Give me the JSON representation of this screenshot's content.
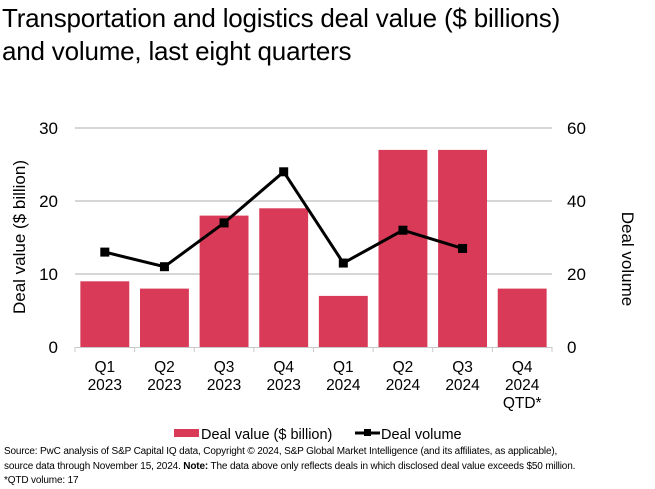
{
  "title_lines": [
    "Transportation and logistics deal value ($ billions)",
    "and volume, last eight quarters"
  ],
  "colors": {
    "bar": "#d93a58",
    "line": "#000000",
    "grid": "#c8c8c8"
  },
  "chart_data": {
    "type": "bar",
    "title": "Transportation and logistics deal value ($ billions) and volume, last eight quarters",
    "categories": [
      [
        "Q1",
        "2023"
      ],
      [
        "Q2",
        "2023"
      ],
      [
        "Q3",
        "2023"
      ],
      [
        "Q4",
        "2023"
      ],
      [
        "Q1",
        "2024"
      ],
      [
        "Q2",
        "2024"
      ],
      [
        "Q3",
        "2024"
      ],
      [
        "Q4",
        "2024",
        "QTD*"
      ]
    ],
    "ylabel": "Deal value ($ billion)",
    "y2label": "Deal volume",
    "ylim": [
      0,
      30
    ],
    "y2lim": [
      0,
      60
    ],
    "yticks": [
      "0",
      "10",
      "20",
      "30"
    ],
    "y2ticks": [
      "0",
      "20",
      "40",
      "60"
    ],
    "grid": true,
    "legend_position": "bottom",
    "series": [
      {
        "name": "Deal value ($ billion)",
        "type": "bar",
        "axis": "left",
        "values": [
          9,
          8,
          18,
          19,
          7,
          27,
          27,
          8
        ]
      },
      {
        "name": "Deal volume",
        "type": "line",
        "axis": "right",
        "marker": "square",
        "values": [
          26,
          22,
          34,
          48,
          23,
          32,
          27,
          null
        ]
      }
    ]
  },
  "footer": {
    "source_line1": "Source: PwC analysis of S&P Capital IQ data, Copyright © 2024, S&P Global Market Intelligence (and its affiliates, as applicable),",
    "source_line2_pre": "source data through November 15, 2024. ",
    "note_label": "Note:",
    "source_line2_post": " The data above only reflects deals in which disclosed deal value exceeds $50 million.",
    "footnote": "*QTD volume: 17"
  }
}
